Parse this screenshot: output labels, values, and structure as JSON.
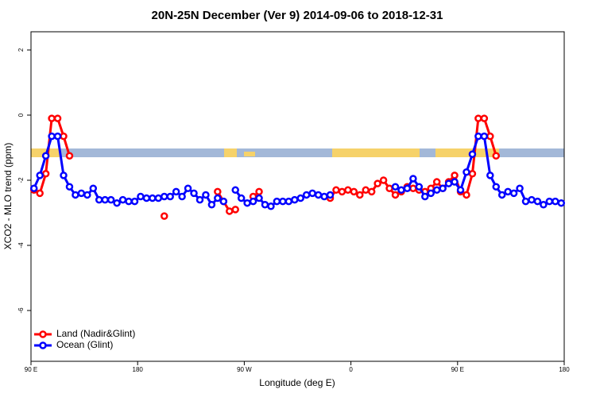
{
  "chart_data": {
    "type": "line",
    "title": "20N-25N December (Ver 9)   2014-09-06 to 2018-12-31",
    "x_label": "Longitude (deg E)",
    "y_label": "XCO2 - MLO trend (ppm)",
    "x": [
      92.5,
      97.5,
      102.5,
      107.5,
      112.5,
      117.5,
      122.5,
      127.5,
      132.5,
      137.5,
      142.5,
      147.5,
      152.5,
      157.5,
      162.5,
      167.5,
      172.5,
      177.5,
      182.5,
      187.5,
      192.5,
      197.5,
      202.5,
      207.5,
      212.5,
      217.5,
      222.5,
      227.5,
      232.5,
      237.5,
      242.5,
      247.5,
      252.5,
      257.5,
      262.5,
      267.5,
      272.5,
      277.5,
      282.5,
      287.5,
      292.5,
      297.5,
      302.5,
      307.5,
      312.5,
      317.5,
      322.5,
      327.5,
      332.5,
      337.5,
      342.5,
      347.5,
      352.5,
      357.5,
      362.5,
      367.5,
      372.5,
      377.5,
      382.5,
      387.5,
      392.5,
      397.5,
      402.5,
      407.5,
      412.5,
      417.5,
      422.5,
      427.5,
      432.5,
      437.5,
      442.5,
      447.5,
      452.5,
      457.5,
      462.5,
      467.5,
      472.5,
      477.5,
      482.5,
      487.5,
      492.5,
      497.5,
      502.5,
      507.5,
      512.5,
      517.5,
      522.5,
      527.5,
      532.5,
      537.5
    ],
    "series": [
      {
        "name": "Land (Nadir&Glint)",
        "color": "#ff0000",
        "values": [
          -2.3,
          -2.4,
          -1.8,
          -0.1,
          -0.1,
          -0.65,
          -1.25,
          null,
          null,
          null,
          null,
          null,
          null,
          null,
          null,
          null,
          null,
          null,
          null,
          null,
          null,
          null,
          -3.1,
          null,
          null,
          null,
          null,
          null,
          null,
          null,
          null,
          -2.35,
          -2.65,
          -2.95,
          -2.9,
          null,
          null,
          -2.5,
          -2.35,
          null,
          null,
          null,
          null,
          null,
          null,
          null,
          null,
          null,
          null,
          null,
          -2.55,
          -2.3,
          -2.35,
          -2.3,
          -2.35,
          -2.45,
          -2.3,
          -2.35,
          -2.1,
          -2.0,
          -2.25,
          -2.45,
          -2.35,
          -2.2,
          -2.25,
          -2.3,
          -2.35,
          -2.25,
          -2.05,
          -2.25,
          -2.05,
          -1.85,
          -2.35,
          -2.45,
          -1.8,
          -0.1,
          -0.1,
          -0.65,
          -1.25,
          null,
          null,
          null,
          null,
          null,
          null,
          null,
          null,
          null,
          null,
          null
        ]
      },
      {
        "name": "Ocean (Glint)",
        "color": "#0000ff",
        "values": [
          -2.25,
          -1.85,
          -1.25,
          -0.65,
          -0.65,
          -1.85,
          -2.2,
          -2.45,
          -2.4,
          -2.45,
          -2.25,
          -2.6,
          -2.6,
          -2.6,
          -2.7,
          -2.6,
          -2.65,
          -2.65,
          -2.5,
          -2.55,
          -2.55,
          -2.55,
          -2.5,
          -2.5,
          -2.35,
          -2.5,
          -2.25,
          -2.4,
          -2.6,
          -2.45,
          -2.75,
          -2.55,
          -2.65,
          null,
          -2.3,
          -2.55,
          -2.7,
          -2.65,
          -2.55,
          -2.75,
          -2.8,
          -2.65,
          -2.65,
          -2.65,
          -2.6,
          -2.55,
          -2.45,
          -2.4,
          -2.45,
          -2.5,
          -2.45,
          null,
          null,
          null,
          null,
          null,
          null,
          null,
          null,
          null,
          null,
          -2.2,
          -2.3,
          -2.25,
          -1.95,
          -2.2,
          -2.5,
          -2.4,
          -2.3,
          -2.25,
          -2.1,
          -2.05,
          -2.3,
          -1.75,
          -1.2,
          -0.65,
          -0.65,
          -1.85,
          -2.2,
          -2.45,
          -2.35,
          -2.4,
          -2.25,
          -2.65,
          -2.6,
          -2.65,
          -2.75,
          -2.65,
          -2.65,
          -2.7
        ]
      }
    ],
    "xlim": [
      90,
      540
    ],
    "xticks": [
      {
        "value": 90,
        "label": "90 E"
      },
      180,
      {
        "value": 270,
        "label": "90 W"
      },
      {
        "value": 360,
        "label": "0"
      },
      {
        "value": 450,
        "label": "90 E"
      },
      {
        "value": 540,
        "label": "180"
      }
    ],
    "ylim": [
      -7.56,
      2.56
    ],
    "yticks": [
      2,
      0,
      -2,
      -4,
      -6
    ],
    "legend": "bottom-left"
  }
}
